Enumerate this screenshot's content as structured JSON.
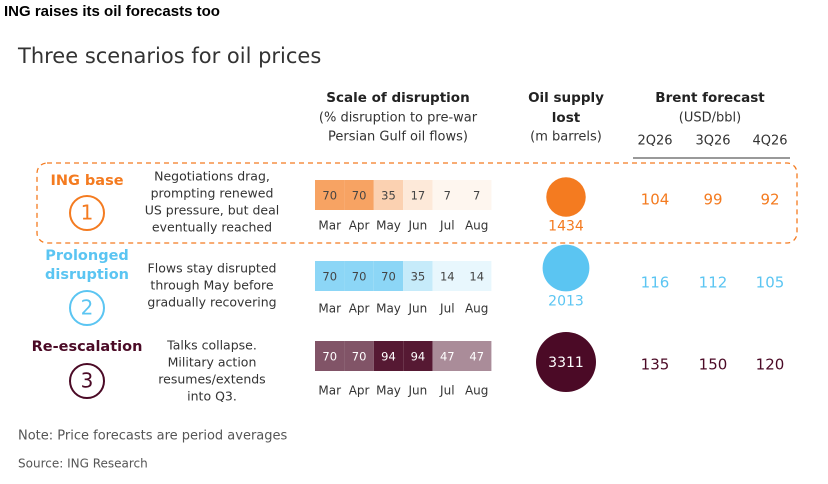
{
  "header": {
    "title": "ING raises its oil forecasts too"
  },
  "subtitle": "Three scenarios for oil prices",
  "columns": {
    "disruption": {
      "title": "Scale of disruption",
      "subtitle": [
        "(% disruption to pre-war",
        "Persian Gulf oil flows)"
      ]
    },
    "supply": {
      "title": [
        "Oil supply",
        "lost"
      ],
      "unit": "(m barrels)"
    },
    "brent": {
      "title": "Brent forecast",
      "unit": "(USD/bbl)",
      "quarters": [
        "2Q26",
        "3Q26",
        "4Q26"
      ]
    }
  },
  "months": [
    "Mar",
    "Apr",
    "May",
    "Jun",
    "Jul",
    "Aug"
  ],
  "scenarios": [
    {
      "name": [
        "ING base"
      ],
      "number": "1",
      "color": "#f47b20",
      "cell_text_color": "#444444",
      "description": [
        "Negotiations drag,",
        "prompting renewed",
        "US pressure, but deal",
        "eventually reached"
      ],
      "disruption": [
        70,
        70,
        35,
        17,
        7,
        7
      ],
      "supply": 1434,
      "forecast": [
        104,
        99,
        92
      ]
    },
    {
      "name": [
        "Prolonged",
        "disruption"
      ],
      "number": "2",
      "color": "#5bc5f2",
      "cell_text_color": "#444444",
      "description": [
        "Flows stay disrupted",
        "through May before",
        "gradually recovering"
      ],
      "disruption": [
        70,
        70,
        70,
        35,
        14,
        14
      ],
      "supply": 2013,
      "forecast": [
        116,
        112,
        105
      ]
    },
    {
      "name": [
        "Re-escalation"
      ],
      "number": "3",
      "color": "#4b0a26",
      "cell_text_color": "#ffffff",
      "description": [
        "Talks collapse.",
        "Military action",
        "resumes/extends",
        "into Q3."
      ],
      "disruption": [
        70,
        70,
        94,
        94,
        47,
        47
      ],
      "supply": 3311,
      "forecast": [
        135,
        150,
        120
      ]
    }
  ],
  "note": "Note: Price forecasts are period averages",
  "source": "Source: ING Research"
}
